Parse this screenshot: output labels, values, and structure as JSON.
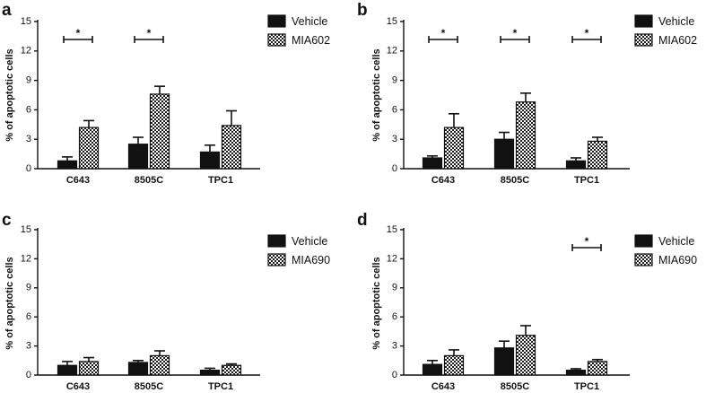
{
  "chart_data": [
    {
      "type": "bar",
      "panel": "a",
      "ylabel": "% of apoptotic cells",
      "yticks": [
        "0",
        "3",
        "6",
        "9",
        "12",
        "15"
      ],
      "ylim": [
        0,
        15
      ],
      "categories": [
        "C643",
        "8505C",
        "TPC1"
      ],
      "series": [
        {
          "name": "Vehicle",
          "values": [
            0.8,
            2.5,
            1.7
          ],
          "errors": [
            0.4,
            0.7,
            0.7
          ]
        },
        {
          "name": "MIA602",
          "values": [
            4.2,
            7.6,
            4.4
          ],
          "errors": [
            0.7,
            0.8,
            1.5
          ]
        }
      ],
      "significance": [
        {
          "category": "C643",
          "label": "*"
        },
        {
          "category": "8505C",
          "label": "*"
        }
      ],
      "legend": "top-right"
    },
    {
      "type": "bar",
      "panel": "b",
      "ylabel": "% of apoptotic cells",
      "yticks": [
        "0",
        "3",
        "6",
        "9",
        "12",
        "15"
      ],
      "ylim": [
        0,
        15
      ],
      "categories": [
        "C643",
        "8505C",
        "TPC1"
      ],
      "series": [
        {
          "name": "Vehicle",
          "values": [
            1.1,
            3.0,
            0.8
          ],
          "errors": [
            0.2,
            0.7,
            0.3
          ]
        },
        {
          "name": "MIA602",
          "values": [
            4.2,
            6.8,
            2.8
          ],
          "errors": [
            1.4,
            0.9,
            0.4
          ]
        }
      ],
      "significance": [
        {
          "category": "C643",
          "label": "*"
        },
        {
          "category": "8505C",
          "label": "*"
        },
        {
          "category": "TPC1",
          "label": "*"
        }
      ],
      "legend": "top-right"
    },
    {
      "type": "bar",
      "panel": "c",
      "ylabel": "% of apoptotic cells",
      "yticks": [
        "0",
        "3",
        "6",
        "9",
        "12",
        "15"
      ],
      "ylim": [
        0,
        15
      ],
      "categories": [
        "C643",
        "8505C",
        "TPC1"
      ],
      "series": [
        {
          "name": "Vehicle",
          "values": [
            1.0,
            1.3,
            0.5
          ],
          "errors": [
            0.4,
            0.2,
            0.2
          ]
        },
        {
          "name": "MIA690",
          "values": [
            1.4,
            2.0,
            1.0
          ],
          "errors": [
            0.4,
            0.5,
            0.15
          ]
        }
      ],
      "significance": [],
      "legend": "top-right"
    },
    {
      "type": "bar",
      "panel": "d",
      "ylabel": "% of apoptotic cells",
      "yticks": [
        "0",
        "3",
        "6",
        "9",
        "12",
        "15"
      ],
      "ylim": [
        0,
        15
      ],
      "categories": [
        "C643",
        "8505C",
        "TPC1"
      ],
      "series": [
        {
          "name": "Vehicle",
          "values": [
            1.1,
            2.8,
            0.5
          ],
          "errors": [
            0.4,
            0.7,
            0.15
          ]
        },
        {
          "name": "MIA690",
          "values": [
            2.0,
            4.1,
            1.4
          ],
          "errors": [
            0.6,
            1.0,
            0.2
          ]
        }
      ],
      "significance": [
        {
          "category": "TPC1",
          "label": "*"
        }
      ],
      "legend": "top-right"
    }
  ]
}
